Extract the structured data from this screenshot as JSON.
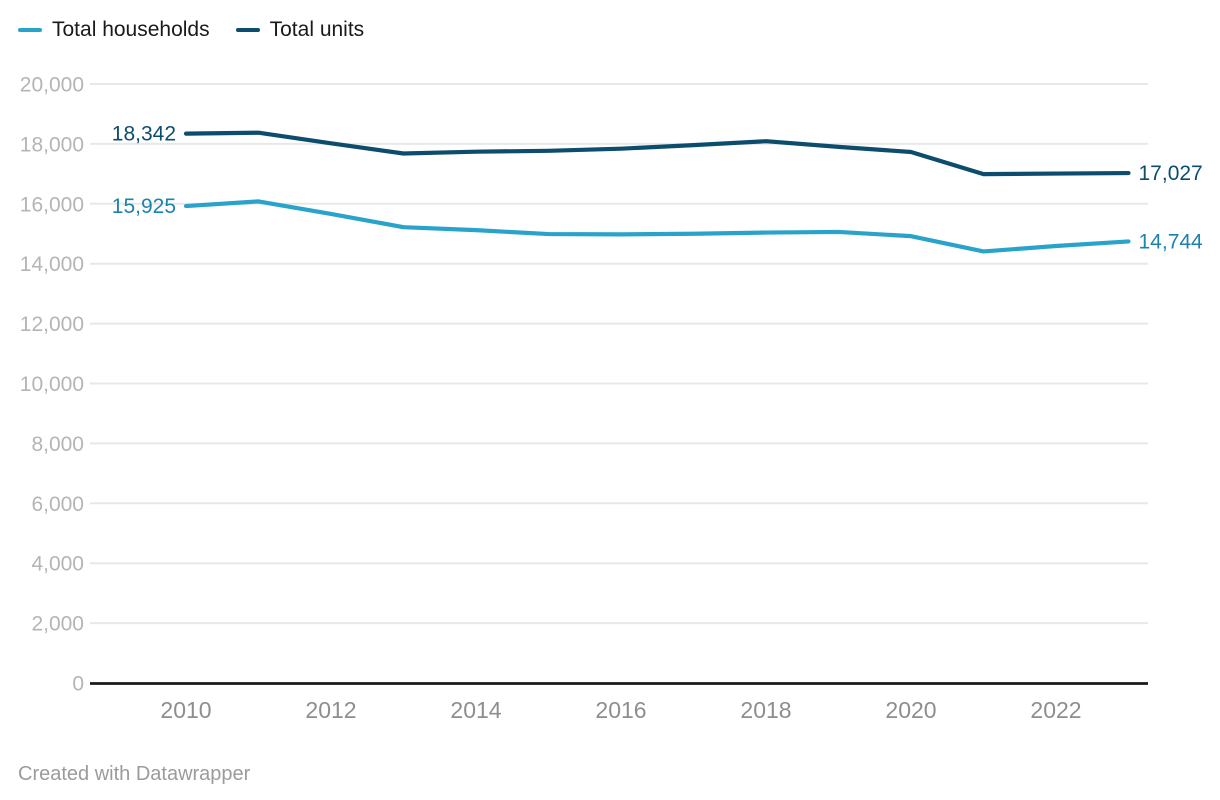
{
  "legend": {
    "items": [
      {
        "label": "Total households",
        "color": "#2aa3cb"
      },
      {
        "label": "Total units",
        "color": "#0c4d6e"
      }
    ]
  },
  "footer": {
    "credit": "Created with Datawrapper"
  },
  "colors": {
    "axis_line": "#1a1a1a",
    "gridline": "#e8e8e8",
    "ytick_text": "#b5b5b5",
    "xtick_text": "#8e8e8e",
    "legend_text": "#1a1a1a",
    "footer_text": "#9b9b9b",
    "background": "#ffffff"
  },
  "chart_data": {
    "type": "line",
    "x": [
      2010,
      2011,
      2012,
      2013,
      2014,
      2015,
      2016,
      2017,
      2018,
      2019,
      2020,
      2021,
      2022,
      2023
    ],
    "series": [
      {
        "name": "Total households",
        "color": "#2aa3cb",
        "label_color": "#1d83ad",
        "values": [
          15925,
          16080,
          15660,
          15220,
          15120,
          14990,
          14980,
          15000,
          15040,
          15060,
          14920,
          14410,
          14590,
          14744
        ],
        "point_labels": {
          "first": "15,925",
          "last": "14,744"
        }
      },
      {
        "name": "Total units",
        "color": "#0c4d6e",
        "label_color": "#0c4d6e",
        "values": [
          18342,
          18375,
          18020,
          17680,
          17740,
          17770,
          17840,
          17960,
          18090,
          17900,
          17730,
          16990,
          17010,
          17027
        ],
        "point_labels": {
          "first": "18,342",
          "last": "17,027"
        }
      }
    ],
    "title": "",
    "xlabel": "",
    "ylabel": "",
    "ylim": [
      0,
      20000
    ],
    "yticks": [
      0,
      2000,
      4000,
      6000,
      8000,
      10000,
      12000,
      14000,
      16000,
      18000,
      20000
    ],
    "ytick_labels": [
      "0",
      "2,000",
      "4,000",
      "6,000",
      "8,000",
      "10,000",
      "12,000",
      "14,000",
      "16,000",
      "18,000",
      "20,000"
    ],
    "xticks": [
      2010,
      2012,
      2014,
      2016,
      2018,
      2020,
      2022
    ],
    "xtick_labels": [
      "2010",
      "2012",
      "2014",
      "2016",
      "2018",
      "2020",
      "2022"
    ],
    "grid": "horizontal",
    "legend_position": "top-left"
  }
}
